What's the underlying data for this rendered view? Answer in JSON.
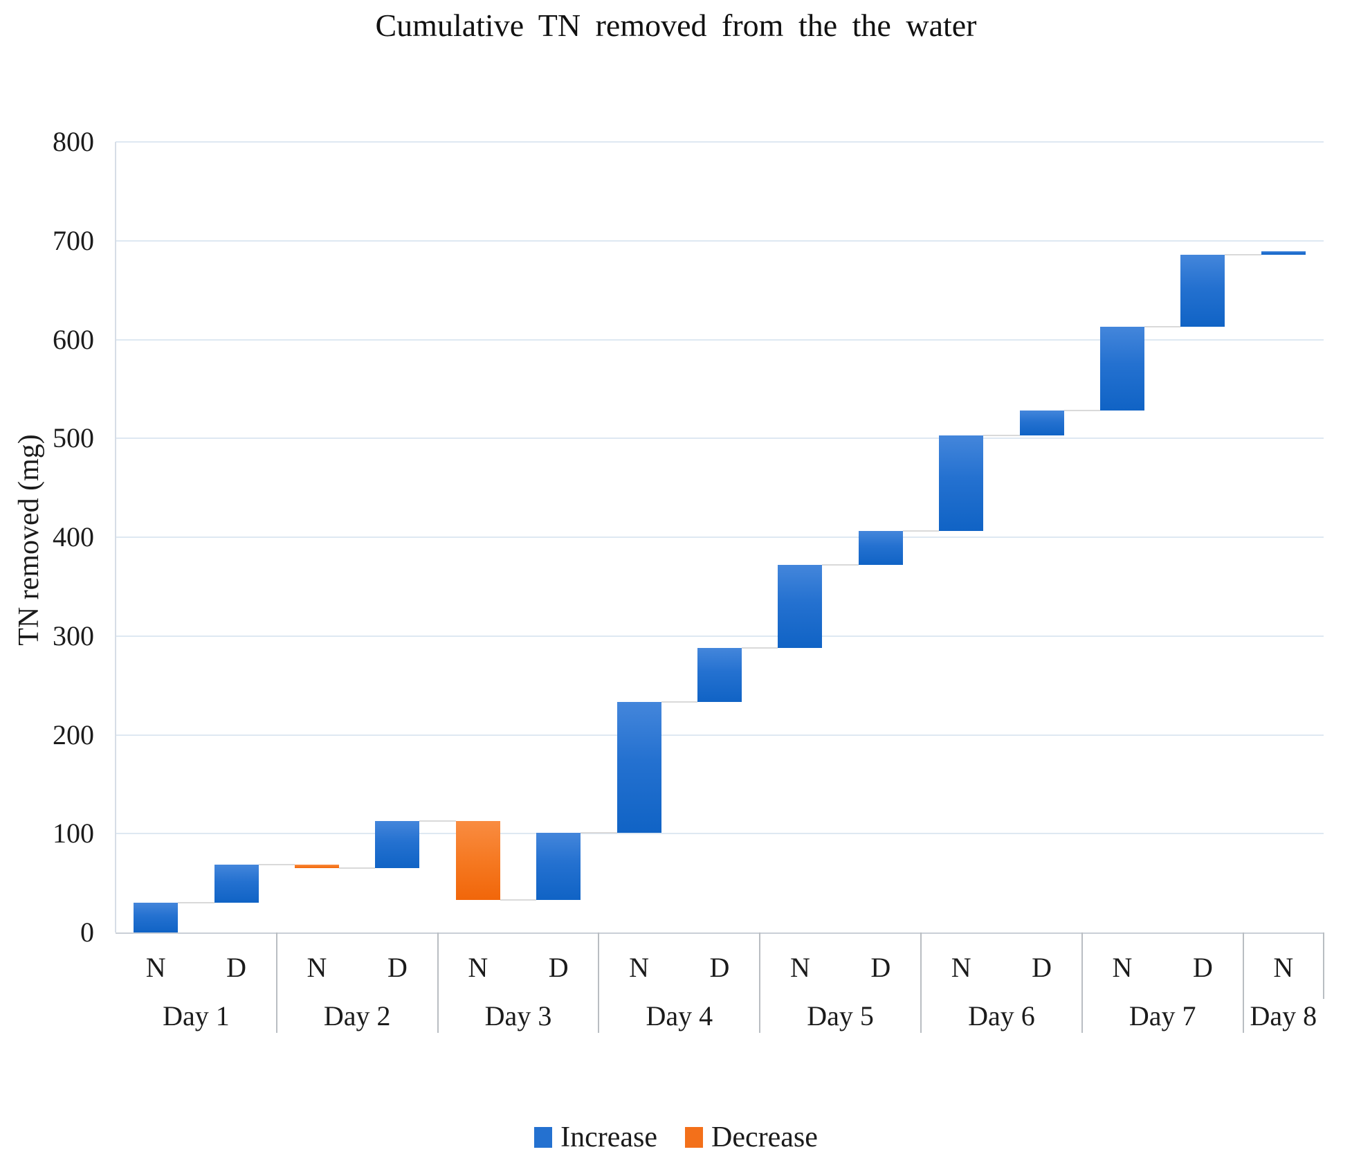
{
  "title": "Cumulative TN removed from the the water",
  "y_axis": {
    "title": "TN removed (mg)",
    "ticks": [
      0,
      100,
      200,
      300,
      400,
      500,
      600,
      700,
      800
    ]
  },
  "x_axis": {
    "slots": [
      "N",
      "D",
      "N",
      "D",
      "N",
      "D",
      "N",
      "D",
      "N",
      "D",
      "N",
      "D",
      "N",
      "D",
      "N"
    ],
    "groups": [
      {
        "label": "Day 1",
        "slots": 2
      },
      {
        "label": "Day 2",
        "slots": 2
      },
      {
        "label": "Day 3",
        "slots": 2
      },
      {
        "label": "Day 4",
        "slots": 2
      },
      {
        "label": "Day 5",
        "slots": 2
      },
      {
        "label": "Day 6",
        "slots": 2
      },
      {
        "label": "Day 7",
        "slots": 2
      },
      {
        "label": "Day 8",
        "slots": 1
      }
    ]
  },
  "legend": {
    "items": [
      {
        "label": "Increase",
        "type": "increase"
      },
      {
        "label": "Decrease",
        "type": "decrease"
      }
    ]
  },
  "colors": {
    "increase": "#2471d0",
    "decrease": "#f3701a",
    "gridline": "#dee8f2",
    "axis": "#c9cfd6",
    "separator": "#b9bdc2",
    "connector": "#d9d9d9",
    "text": "#1b1b1b"
  },
  "chart_data": {
    "type": "waterfall",
    "title": "Cumulative TN removed from the the water",
    "xlabel": "",
    "ylabel": "TN removed (mg)",
    "ylim": [
      0,
      800
    ],
    "grid": true,
    "legend_position": "bottom",
    "categories_level1": [
      "N",
      "D",
      "N",
      "D",
      "N",
      "D",
      "N",
      "D",
      "N",
      "D",
      "N",
      "D",
      "N",
      "D",
      "N"
    ],
    "categories_level2": [
      "Day 1",
      "Day 2",
      "Day 3",
      "Day 4",
      "Day 5",
      "Day 6",
      "Day 7",
      "Day 8"
    ],
    "steps": [
      {
        "day": "Day 1",
        "period": "N",
        "start": 0,
        "end": 30,
        "change": 30,
        "direction": "increase"
      },
      {
        "day": "Day 1",
        "period": "D",
        "start": 30,
        "end": 69,
        "change": 39,
        "direction": "increase"
      },
      {
        "day": "Day 2",
        "period": "N",
        "start": 69,
        "end": 65,
        "change": -4,
        "direction": "decrease"
      },
      {
        "day": "Day 2",
        "period": "D",
        "start": 65,
        "end": 113,
        "change": 48,
        "direction": "increase"
      },
      {
        "day": "Day 3",
        "period": "N",
        "start": 113,
        "end": 33,
        "change": -80,
        "direction": "decrease"
      },
      {
        "day": "Day 3",
        "period": "D",
        "start": 33,
        "end": 101,
        "change": 68,
        "direction": "increase"
      },
      {
        "day": "Day 4",
        "period": "N",
        "start": 101,
        "end": 233,
        "change": 132,
        "direction": "increase"
      },
      {
        "day": "Day 4",
        "period": "D",
        "start": 233,
        "end": 288,
        "change": 55,
        "direction": "increase"
      },
      {
        "day": "Day 5",
        "period": "N",
        "start": 288,
        "end": 372,
        "change": 84,
        "direction": "increase"
      },
      {
        "day": "Day 5",
        "period": "D",
        "start": 372,
        "end": 406,
        "change": 34,
        "direction": "increase"
      },
      {
        "day": "Day 6",
        "period": "N",
        "start": 406,
        "end": 503,
        "change": 97,
        "direction": "increase"
      },
      {
        "day": "Day 6",
        "period": "D",
        "start": 503,
        "end": 528,
        "change": 25,
        "direction": "increase"
      },
      {
        "day": "Day 7",
        "period": "N",
        "start": 528,
        "end": 613,
        "change": 85,
        "direction": "increase"
      },
      {
        "day": "Day 7",
        "period": "D",
        "start": 613,
        "end": 686,
        "change": 73,
        "direction": "increase"
      },
      {
        "day": "Day 8",
        "period": "N",
        "start": 686,
        "end": 689,
        "change": 3,
        "direction": "increase"
      }
    ]
  }
}
